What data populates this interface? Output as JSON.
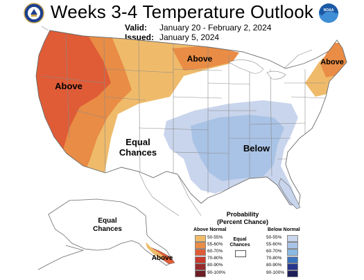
{
  "header": {
    "title": "Weeks 3-4 Temperature Outlook",
    "valid_label": "Valid:",
    "valid_value": "January 20 - February 2, 2024",
    "issued_label": "Issued:",
    "issued_value": "January 5, 2024"
  },
  "logos": {
    "left": "us-department-of-commerce-seal",
    "right": "noaa-logo",
    "right_text": "NOAA"
  },
  "map_labels": {
    "west": "Above",
    "north": "Above",
    "northeast": "Above",
    "center_line1": "Equal",
    "center_line2": "Chances",
    "southeast": "Below",
    "alaska_line1": "Equal",
    "alaska_line2": "Chances",
    "alaska_south": "Above"
  },
  "legend": {
    "title_line1": "Probability",
    "title_line2": "(Percent Chance)",
    "above_header": "Above Normal",
    "below_header": "Below Normal",
    "equal_line1": "Equal",
    "equal_line2": "Chances",
    "above": [
      {
        "range": "50-55%",
        "color": "#efbb6b"
      },
      {
        "range": "55-60%",
        "color": "#e98c45"
      },
      {
        "range": "60-70%",
        "color": "#df5c37"
      },
      {
        "range": "70-80%",
        "color": "#c8382c"
      },
      {
        "range": "80-90%",
        "color": "#962a2c"
      },
      {
        "range": "90-100%",
        "color": "#6b1f24"
      }
    ],
    "below": [
      {
        "range": "50-55%",
        "color": "#c9d5ec"
      },
      {
        "range": "55-60%",
        "color": "#a9c3e6"
      },
      {
        "range": "60-70%",
        "color": "#8ab9e2"
      },
      {
        "range": "70-80%",
        "color": "#3a73bd"
      },
      {
        "range": "80-90%",
        "color": "#28368e"
      },
      {
        "range": "90-100%",
        "color": "#1d1e5a"
      }
    ]
  },
  "colors": {
    "above_50": "#efbb6b",
    "above_55": "#e98c45",
    "above_60": "#df5c37",
    "below_50": "#c9d5ec",
    "below_55": "#a9c3e6",
    "border": "#8a8a8a"
  }
}
